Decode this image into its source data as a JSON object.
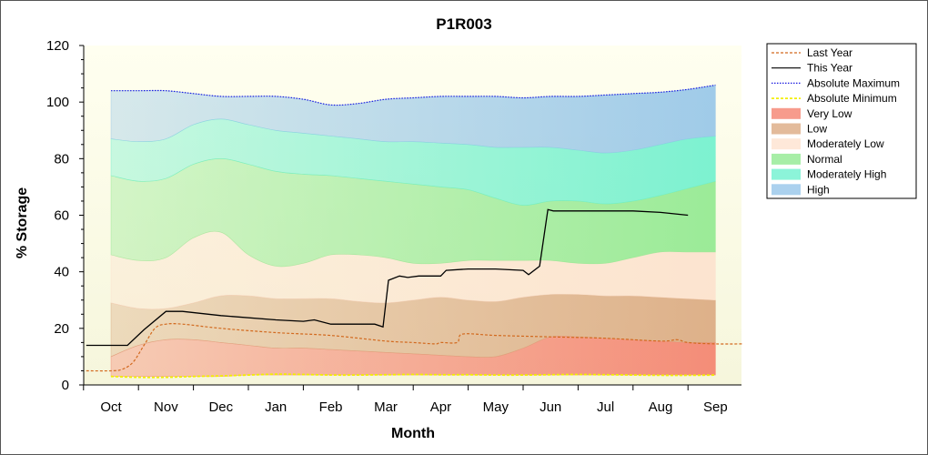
{
  "chart_data": {
    "type": "area",
    "title": "P1R003",
    "xlabel": "Month",
    "ylabel": "% Storage",
    "ylim": [
      0,
      120
    ],
    "yticks": [
      0,
      20,
      40,
      60,
      80,
      100,
      120
    ],
    "xlim": [
      0,
      11.5
    ],
    "categories": [
      "Oct",
      "Nov",
      "Dec",
      "Jan",
      "Feb",
      "Mar",
      "Apr",
      "May",
      "Jun",
      "Jul",
      "Aug",
      "Sep"
    ],
    "grid": false,
    "legend_position": "right",
    "bands": [
      {
        "name": "Very Low",
        "color": "#f47a66",
        "x": [
          0,
          0.5,
          1,
          1.5,
          2,
          2.5,
          3,
          3.5,
          4,
          4.5,
          5,
          5.5,
          6,
          6.5,
          7,
          7.5,
          8,
          8.5,
          9,
          9.5,
          10,
          10.5,
          11
        ],
        "lower": [
          3,
          3,
          3,
          3,
          3,
          3.5,
          3.5,
          3.5,
          3.5,
          3.5,
          3.5,
          3.5,
          3.5,
          3.5,
          3.5,
          3.5,
          3.5,
          3.5,
          3.5,
          3.5,
          3.5,
          3.5,
          3.5
        ],
        "upper": [
          10,
          14,
          16,
          16,
          15,
          14,
          13,
          13,
          12.5,
          12,
          11.5,
          11,
          10.5,
          10,
          10,
          13,
          17,
          17,
          16.5,
          16,
          15.5,
          15,
          15
        ]
      },
      {
        "name": "Low",
        "color": "#d9a47a",
        "x": [
          0,
          0.5,
          1,
          1.5,
          2,
          2.5,
          3,
          3.5,
          4,
          4.5,
          5,
          5.5,
          6,
          6.5,
          7,
          7.5,
          8,
          8.5,
          9,
          9.5,
          10,
          10.5,
          11
        ],
        "upper": [
          29,
          27,
          27,
          29,
          31.5,
          31.5,
          30.5,
          30.5,
          30.5,
          29.5,
          29,
          30,
          31,
          30,
          29.5,
          31,
          32,
          32,
          31.5,
          31.5,
          31,
          30.5,
          30
        ]
      },
      {
        "name": "Moderately Low",
        "color": "#fde0cc",
        "x": [
          0,
          0.5,
          1,
          1.5,
          2,
          2.5,
          3,
          3.5,
          4,
          4.5,
          5,
          5.5,
          6,
          6.5,
          7,
          7.5,
          8,
          8.5,
          9,
          9.5,
          10,
          10.5,
          11
        ],
        "upper": [
          46,
          44,
          45,
          52,
          54,
          46,
          42,
          43,
          46,
          46,
          45,
          43,
          43,
          44,
          44,
          44,
          44,
          43,
          43,
          45,
          47,
          47,
          47
        ]
      },
      {
        "name": "Normal",
        "color": "#8ae88a",
        "x": [
          0,
          0.5,
          1,
          1.5,
          2,
          2.5,
          3,
          3.5,
          4,
          4.5,
          5,
          5.5,
          6,
          6.5,
          7,
          7.5,
          8,
          8.5,
          9,
          9.5,
          10,
          10.5,
          11
        ],
        "upper": [
          74,
          72,
          73,
          78,
          80,
          78,
          75.5,
          74.5,
          74,
          73,
          72,
          71,
          70,
          69,
          66,
          63.5,
          65,
          65,
          64,
          65,
          67,
          69.5,
          72
        ]
      },
      {
        "name": "Moderately High",
        "color": "#66f0cc",
        "x": [
          0,
          0.5,
          1,
          1.5,
          2,
          2.5,
          3,
          3.5,
          4,
          4.5,
          5,
          5.5,
          6,
          6.5,
          7,
          7.5,
          8,
          8.5,
          9,
          9.5,
          10,
          10.5,
          11
        ],
        "upper": [
          87,
          86,
          87,
          92,
          94,
          92,
          90,
          89,
          88,
          87,
          86,
          86,
          85.5,
          85,
          84,
          84,
          84,
          83,
          82,
          83,
          85,
          87,
          88
        ]
      },
      {
        "name": "High",
        "color": "#8fc2e8",
        "x": [
          0,
          0.5,
          1,
          1.5,
          2,
          2.5,
          3,
          3.5,
          4,
          4.5,
          5,
          5.5,
          6,
          6.5,
          7,
          7.5,
          8,
          8.5,
          9,
          9.5,
          10,
          10.5,
          11
        ],
        "upper": [
          104,
          104,
          104,
          103,
          102,
          102,
          102,
          101,
          99,
          99.5,
          101,
          101.5,
          102,
          102,
          102,
          101.5,
          102,
          102,
          102.5,
          103,
          103.5,
          104.5,
          106
        ]
      }
    ],
    "series": [
      {
        "name": "Last Year",
        "color": "#d2691e",
        "style": "dashed",
        "x": [
          -0.45,
          0,
          0.2,
          0.4,
          0.6,
          0.8,
          1,
          1.3,
          2,
          3,
          4,
          5,
          5.5,
          5.9,
          6,
          6.3,
          6.4,
          7,
          8,
          9,
          10,
          10.3,
          10.5,
          11,
          11.5
        ],
        "y": [
          5,
          5,
          5.5,
          8,
          14,
          20,
          21.5,
          21.5,
          20,
          18.5,
          17.5,
          15.5,
          15,
          14.5,
          15,
          15,
          18,
          17.5,
          17,
          16.5,
          15.5,
          16,
          15,
          14.5,
          14.5
        ]
      },
      {
        "name": "This Year",
        "color": "#000000",
        "style": "solid",
        "x": [
          -0.45,
          0,
          0.3,
          0.6,
          1,
          1.3,
          2,
          3,
          3.5,
          3.7,
          4,
          4.5,
          4.8,
          4.95,
          5.05,
          5.25,
          5.4,
          5.6,
          6,
          6.1,
          6.5,
          7,
          7.5,
          7.6,
          7.8,
          7.95,
          8.05,
          8.5,
          9,
          9.5,
          10,
          10.5
        ],
        "y": [
          14,
          14,
          14,
          19.5,
          26,
          26,
          24.5,
          23,
          22.5,
          23,
          21.5,
          21.5,
          21.5,
          20.5,
          37,
          38.5,
          38,
          38.5,
          38.5,
          40.5,
          41,
          41,
          40.5,
          39,
          42,
          62,
          61.5,
          61.5,
          61.5,
          61.5,
          61,
          60
        ]
      },
      {
        "name": "Absolute Maximum",
        "color": "#1c1ce0",
        "style": "dotted",
        "x": [
          0,
          0.5,
          1,
          1.5,
          2,
          2.5,
          3,
          3.5,
          4,
          4.5,
          5,
          5.5,
          6,
          6.5,
          7,
          7.5,
          8,
          8.5,
          9,
          9.5,
          10,
          10.5,
          11
        ],
        "y": [
          104,
          104,
          104,
          103,
          102,
          102,
          102,
          101,
          99,
          99.5,
          101,
          101.5,
          102,
          102,
          102,
          101.5,
          102,
          102,
          102.5,
          103,
          103.5,
          104.5,
          106
        ]
      },
      {
        "name": "Absolute Minimum",
        "color": "#f2ee00",
        "style": "dashed",
        "x": [
          0,
          0.5,
          1,
          1.5,
          2,
          2.5,
          3,
          3.5,
          4,
          4.5,
          5,
          5.5,
          6,
          6.5,
          7,
          7.5,
          8,
          8.5,
          9,
          9.5,
          10,
          10.5,
          11
        ],
        "y": [
          3,
          2.7,
          2.7,
          3,
          3.2,
          3.5,
          3.8,
          3.7,
          3.5,
          3.5,
          3.6,
          3.7,
          3.6,
          3.6,
          3.5,
          3.5,
          3.6,
          3.7,
          3.6,
          3.5,
          3.4,
          3.4,
          3.5
        ]
      }
    ],
    "legend": [
      {
        "label": "Last Year",
        "kind": "line",
        "color": "#d2691e",
        "style": "dashed"
      },
      {
        "label": "This Year",
        "kind": "line",
        "color": "#000000",
        "style": "solid"
      },
      {
        "label": "Absolute Maximum",
        "kind": "line",
        "color": "#1c1ce0",
        "style": "dotted"
      },
      {
        "label": "Absolute Minimum",
        "kind": "line",
        "color": "#f2ee00",
        "style": "dashed"
      },
      {
        "label": "Very Low",
        "kind": "band",
        "color": "#f47a66"
      },
      {
        "label": "Low",
        "kind": "band",
        "color": "#d9a47a"
      },
      {
        "label": "Moderately Low",
        "kind": "band",
        "color": "#fde0cc"
      },
      {
        "label": "Normal",
        "kind": "band",
        "color": "#8ae88a"
      },
      {
        "label": "Moderately High",
        "kind": "band",
        "color": "#66f0cc"
      },
      {
        "label": "High",
        "kind": "band",
        "color": "#8fc2e8"
      }
    ],
    "background_color": "#fbfbe6"
  }
}
